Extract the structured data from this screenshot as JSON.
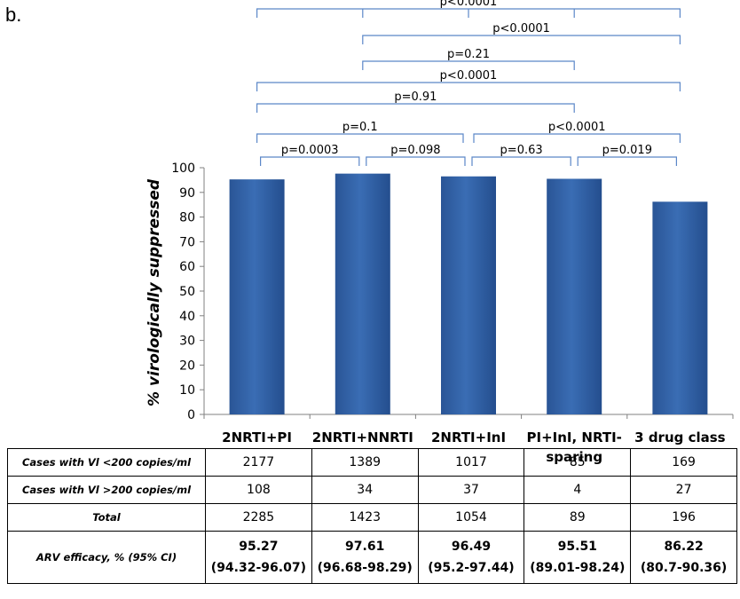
{
  "panel_label": "b.",
  "chart_data": {
    "type": "bar",
    "ylabel": "% virologically suppressed",
    "xlabel": "",
    "ylim": [
      0,
      100
    ],
    "yticks": [
      0,
      10,
      20,
      30,
      40,
      50,
      60,
      70,
      80,
      90,
      100
    ],
    "categories": [
      "2NRTI+PI",
      "2NRTI+NNRTI",
      "2NRTI+InI",
      "PI+InI, NRTI-sparing",
      "3 drug class"
    ],
    "category_lines": [
      [
        "2NRTI+PI"
      ],
      [
        "2NRTI+NNRTI"
      ],
      [
        "2NRTI+InI"
      ],
      [
        "PI+InI, NRTI-",
        "sparing"
      ],
      [
        "3 drug class"
      ]
    ],
    "values": [
      95.27,
      97.61,
      96.49,
      95.51,
      86.22
    ],
    "bar_color": "#3a6db4",
    "bracket_color": "#5b87c8",
    "comparisons": [
      {
        "a": 0,
        "b": 4,
        "label": "p<0.0001"
      },
      {
        "a": 1,
        "b": 4,
        "label": "p<0.0001"
      },
      {
        "a": 1,
        "b": 3,
        "label": "p=0.21"
      },
      {
        "a": 0,
        "b": 4,
        "label": "p<0.0001"
      },
      {
        "a": 0,
        "b": 3,
        "label": "p=0.91"
      },
      {
        "a": 0,
        "b": 2,
        "label": "p=0.1"
      },
      {
        "a": 2,
        "b": 4,
        "label": "p<0.0001"
      },
      {
        "a": 0,
        "b": 1,
        "label": "p=0.0003"
      },
      {
        "a": 1,
        "b": 2,
        "label": "p=0.098"
      },
      {
        "a": 2,
        "b": 3,
        "label": "p=0.63"
      },
      {
        "a": 3,
        "b": 4,
        "label": "p=0.019"
      }
    ]
  },
  "table": {
    "rows": [
      {
        "header": "Cases with Vl <200 copies/ml",
        "cells": [
          "2177",
          "1389",
          "1017",
          "85",
          "169"
        ]
      },
      {
        "header": "Cases with Vl >200 copies/ml",
        "cells": [
          "108",
          "34",
          "37",
          "4",
          "27"
        ]
      },
      {
        "header": "Total",
        "cells": [
          "2285",
          "1423",
          "1054",
          "89",
          "196"
        ]
      }
    ],
    "efficacy": {
      "header": "ARV efficacy, % (95% CI)",
      "values": [
        "95.27",
        "97.61",
        "96.49",
        "95.51",
        "86.22"
      ],
      "cis": [
        "(94.32-96.07)",
        "(96.68-98.29)",
        "(95.2-97.44)",
        "(89.01-98.24)",
        "(80.7-90.36)"
      ]
    }
  }
}
